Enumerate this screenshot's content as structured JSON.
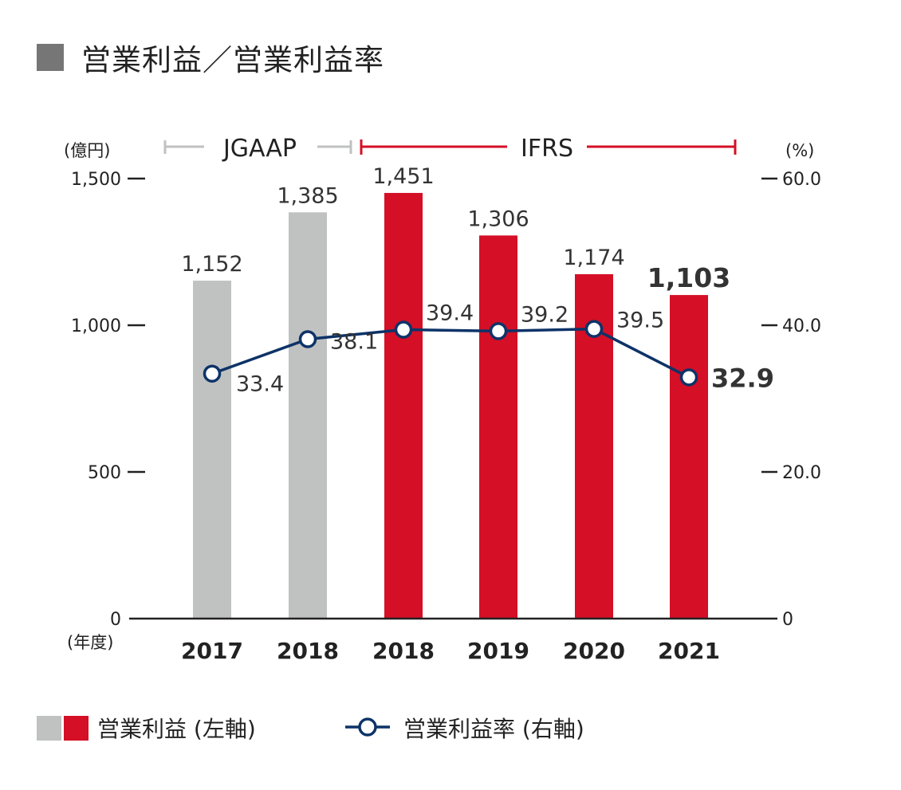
{
  "title": "営業利益／営業利益率",
  "colors": {
    "jgaap_bar": "#c0c1c1",
    "ifrs_bar": "#d40f26",
    "line": "#0d3368",
    "title_square": "#767676",
    "axis": "#222222"
  },
  "left_axis": {
    "unit": "(億円)",
    "ticks": [
      "1,500",
      "1,000",
      "500",
      "0"
    ],
    "tick_values": [
      1500,
      1000,
      500,
      0
    ],
    "range": [
      0,
      1500
    ]
  },
  "right_axis": {
    "unit": "(%)",
    "ticks": [
      "60.0",
      "40.0",
      "20.0",
      "0"
    ],
    "tick_values": [
      60,
      40,
      20,
      0
    ],
    "range": [
      0,
      60
    ]
  },
  "x_axis_unit": "(年度)",
  "standards": {
    "jgaap": "JGAAP",
    "ifrs": "IFRS"
  },
  "legend": {
    "bars": "営業利益 (左軸)",
    "line": "営業利益率 (右軸)"
  },
  "chart_data": {
    "type": "bar",
    "title": "営業利益／営業利益率",
    "categories": [
      "2017",
      "2018",
      "2018",
      "2019",
      "2020",
      "2021"
    ],
    "series": [
      {
        "name": "営業利益 (左軸)",
        "axis": "left",
        "unit": "億円",
        "values": [
          1152,
          1385,
          1451,
          1306,
          1174,
          1103
        ],
        "labels": [
          "1,152",
          "1,385",
          "1,451",
          "1,306",
          "1,174",
          "1,103"
        ],
        "standard": [
          "JGAAP",
          "JGAAP",
          "IFRS",
          "IFRS",
          "IFRS",
          "IFRS"
        ]
      },
      {
        "name": "営業利益率 (右軸)",
        "axis": "right",
        "type": "line",
        "unit": "%",
        "values": [
          33.4,
          38.1,
          39.4,
          39.2,
          39.5,
          32.9
        ],
        "labels": [
          "33.4",
          "38.1",
          "39.4",
          "39.2",
          "39.5",
          "32.9"
        ]
      }
    ],
    "ylim_left": [
      0,
      1500
    ],
    "ylim_right": [
      0,
      60
    ],
    "xlabel": "(年度)",
    "ylabel_left": "(億円)",
    "ylabel_right": "(%)",
    "highlight_last": true
  }
}
